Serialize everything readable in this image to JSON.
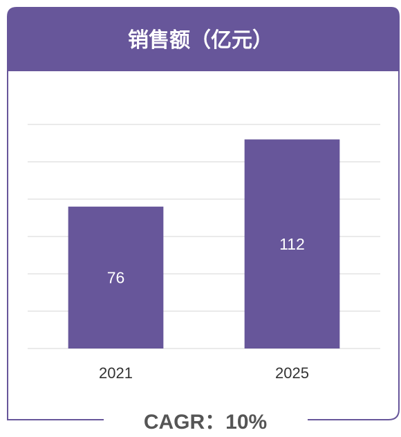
{
  "chart_data": {
    "type": "bar",
    "title": "销售额（亿元）",
    "categories": [
      "2021",
      "2025"
    ],
    "values": [
      76,
      112
    ],
    "color": "#67569a",
    "ylim": [
      0,
      120
    ],
    "yticks": [
      0,
      20,
      40,
      60,
      80,
      100,
      120
    ],
    "grid": true,
    "annotation": "CAGR：10%"
  }
}
